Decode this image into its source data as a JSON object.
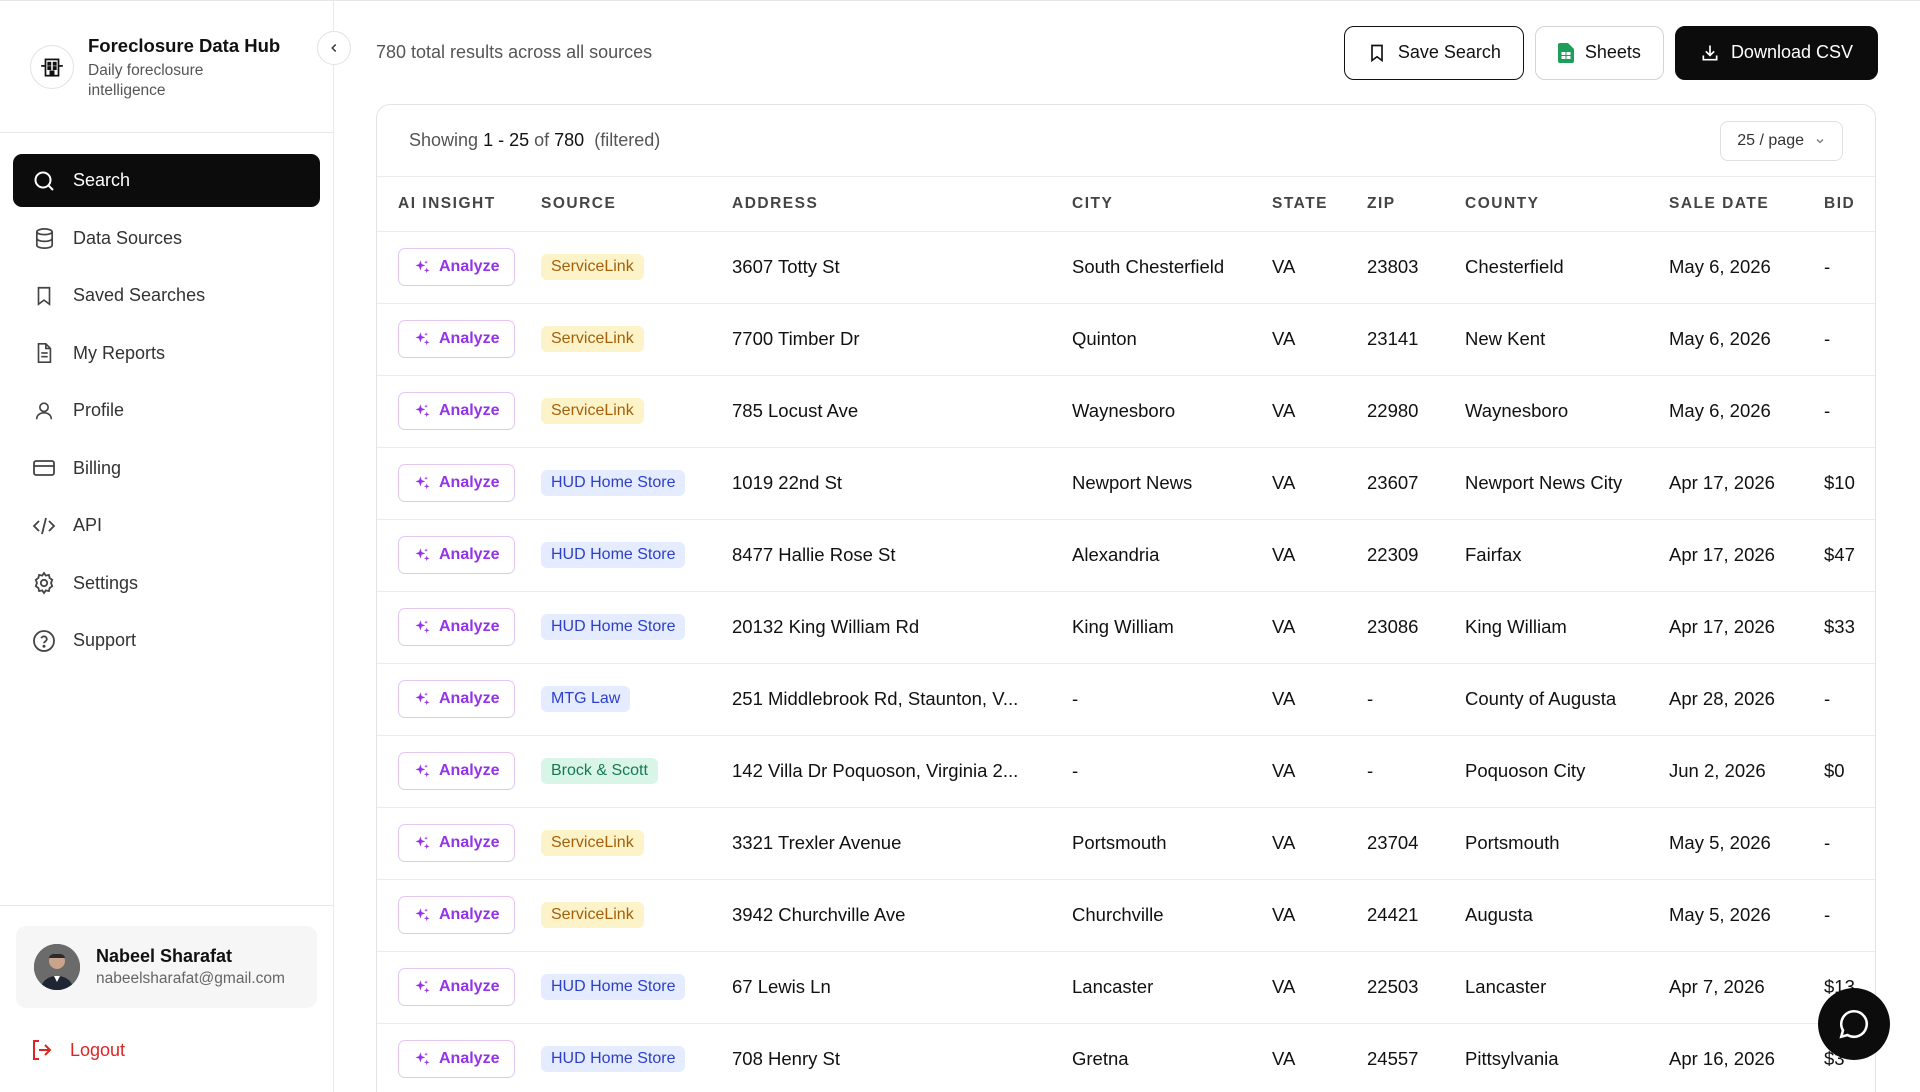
{
  "brand": {
    "title": "Foreclosure Data Hub",
    "subtitle": "Daily foreclosure intelligence"
  },
  "nav": [
    {
      "label": "Search",
      "icon": "search-icon",
      "active": true
    },
    {
      "label": "Data Sources",
      "icon": "database-icon"
    },
    {
      "label": "Saved Searches",
      "icon": "bookmark-icon"
    },
    {
      "label": "My Reports",
      "icon": "document-icon"
    },
    {
      "label": "Profile",
      "icon": "user-icon"
    },
    {
      "label": "Billing",
      "icon": "credit-card-icon"
    },
    {
      "label": "API",
      "icon": "code-icon"
    },
    {
      "label": "Settings",
      "icon": "gear-icon"
    },
    {
      "label": "Support",
      "icon": "help-circle-icon"
    }
  ],
  "user": {
    "name": "Nabeel Sharafat",
    "email": "nabeelsharafat@gmail.com"
  },
  "logout_label": "Logout",
  "topbar": {
    "results_text": "780 total results across all sources",
    "save_search": "Save Search",
    "sheets": "Sheets",
    "download_csv": "Download CSV"
  },
  "pagination": {
    "showing_prefix": "Showing",
    "range": "1 - 25",
    "of_word": "of",
    "total": "780",
    "filtered": "(filtered)",
    "per_page": "25 / page"
  },
  "table": {
    "columns": [
      "AI INSIGHT",
      "SOURCE",
      "ADDRESS",
      "CITY",
      "STATE",
      "ZIP",
      "COUNTY",
      "SALE DATE",
      "BID"
    ],
    "analyze_label": "Analyze",
    "rows": [
      {
        "source": "ServiceLink",
        "source_color": "yellow",
        "address": "3607 Totty St",
        "city": "South Chesterfield",
        "state": "VA",
        "zip": "23803",
        "county": "Chesterfield",
        "sale_date": "May 6, 2026",
        "bid": "-"
      },
      {
        "source": "ServiceLink",
        "source_color": "yellow",
        "address": "7700 Timber Dr",
        "city": "Quinton",
        "state": "VA",
        "zip": "23141",
        "county": "New Kent",
        "sale_date": "May 6, 2026",
        "bid": "-"
      },
      {
        "source": "ServiceLink",
        "source_color": "yellow",
        "address": "785 Locust Ave",
        "city": "Waynesboro",
        "state": "VA",
        "zip": "22980",
        "county": "Waynesboro",
        "sale_date": "May 6, 2026",
        "bid": "-"
      },
      {
        "source": "HUD Home Store",
        "source_color": "blue",
        "address": "1019 22nd St",
        "city": "Newport News",
        "state": "VA",
        "zip": "23607",
        "county": "Newport News City",
        "sale_date": "Apr 17, 2026",
        "bid": "$10"
      },
      {
        "source": "HUD Home Store",
        "source_color": "blue",
        "address": "8477 Hallie Rose St",
        "city": "Alexandria",
        "state": "VA",
        "zip": "22309",
        "county": "Fairfax",
        "sale_date": "Apr 17, 2026",
        "bid": "$47"
      },
      {
        "source": "HUD Home Store",
        "source_color": "blue",
        "address": "20132 King William Rd",
        "city": "King William",
        "state": "VA",
        "zip": "23086",
        "county": "King William",
        "sale_date": "Apr 17, 2026",
        "bid": "$33"
      },
      {
        "source": "MTG Law",
        "source_color": "blue",
        "address": "251 Middlebrook Rd, Staunton, V...",
        "city": "-",
        "state": "VA",
        "zip": "-",
        "county": "County of Augusta",
        "sale_date": "Apr 28, 2026",
        "bid": "-"
      },
      {
        "source": "Brock & Scott",
        "source_color": "green",
        "address": "142 Villa Dr Poquoson, Virginia 2...",
        "city": "-",
        "state": "VA",
        "zip": "-",
        "county": "Poquoson City",
        "sale_date": "Jun 2, 2026",
        "bid": "$0"
      },
      {
        "source": "ServiceLink",
        "source_color": "yellow",
        "address": "3321 Trexler Avenue",
        "city": "Portsmouth",
        "state": "VA",
        "zip": "23704",
        "county": "Portsmouth",
        "sale_date": "May 5, 2026",
        "bid": "-"
      },
      {
        "source": "ServiceLink",
        "source_color": "yellow",
        "address": "3942 Churchville Ave",
        "city": "Churchville",
        "state": "VA",
        "zip": "24421",
        "county": "Augusta",
        "sale_date": "May 5, 2026",
        "bid": "-"
      },
      {
        "source": "HUD Home Store",
        "source_color": "blue",
        "address": "67 Lewis Ln",
        "city": "Lancaster",
        "state": "VA",
        "zip": "22503",
        "county": "Lancaster",
        "sale_date": "Apr 7, 2026",
        "bid": "$13"
      },
      {
        "source": "HUD Home Store",
        "source_color": "blue",
        "address": "708 Henry St",
        "city": "Gretna",
        "state": "VA",
        "zip": "24557",
        "county": "Pittsylvania",
        "sale_date": "Apr 16, 2026",
        "bid": "$3"
      }
    ]
  },
  "colors": {
    "accent_dark": "#0c0c0c",
    "analyze_purple": "#9333ea",
    "logout_red": "#dc2626"
  }
}
